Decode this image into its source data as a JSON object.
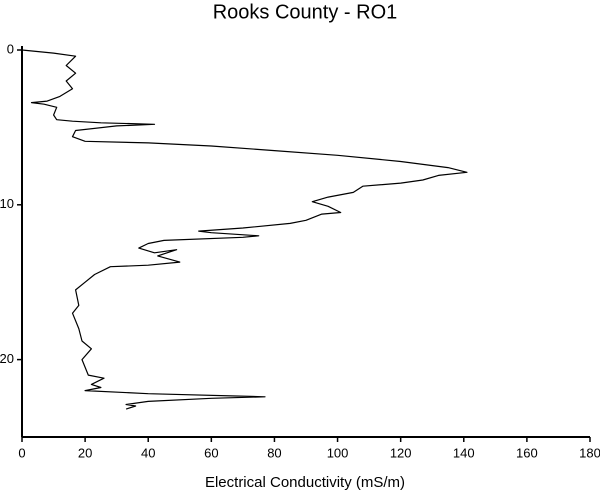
{
  "chart_data": {
    "type": "line",
    "title": "Rooks County - RO1",
    "x_label": "Electrical Conductivity (mS/m)",
    "xlim": [
      0,
      180
    ],
    "xticks": [
      0,
      20,
      40,
      60,
      80,
      100,
      120,
      140,
      160,
      180
    ],
    "ylim": [
      0,
      25
    ],
    "yticks": [
      0,
      10,
      20
    ],
    "y_inverted": true,
    "color": "#000000",
    "x": [
      0,
      10,
      17,
      14,
      17,
      14,
      16,
      12,
      8,
      3,
      7,
      11,
      10,
      11,
      16,
      25,
      42,
      30,
      17,
      16,
      20,
      40,
      60,
      80,
      100,
      120,
      135,
      141,
      132,
      127,
      120,
      108,
      105,
      97,
      92,
      97,
      101,
      95,
      90,
      85,
      70,
      56,
      60,
      75,
      70,
      45,
      40,
      37,
      42,
      49,
      43,
      50,
      40,
      28,
      23,
      20,
      17,
      18,
      16,
      18,
      19,
      22,
      19,
      21,
      26,
      22,
      25,
      20,
      40,
      77,
      60,
      40,
      33,
      36,
      33
    ],
    "values": [
      0,
      0.2,
      0.4,
      1.0,
      1.5,
      2.0,
      2.5,
      3.0,
      3.3,
      3.4,
      3.5,
      3.7,
      4.2,
      4.5,
      4.6,
      4.7,
      4.8,
      4.9,
      5.2,
      5.6,
      5.9,
      6.0,
      6.2,
      6.5,
      6.8,
      7.2,
      7.6,
      7.9,
      8.1,
      8.4,
      8.6,
      8.8,
      9.2,
      9.5,
      9.8,
      10.1,
      10.5,
      10.6,
      11.0,
      11.2,
      11.5,
      11.7,
      11.8,
      12.0,
      12.1,
      12.3,
      12.5,
      12.8,
      13.1,
      12.9,
      13.3,
      13.7,
      13.9,
      14.0,
      14.5,
      15.0,
      15.5,
      16.5,
      17.0,
      18.0,
      18.8,
      19.3,
      20.0,
      21.0,
      21.2,
      21.6,
      21.8,
      22.0,
      22.2,
      22.4,
      22.5,
      22.7,
      22.9,
      23.0,
      23.2
    ]
  }
}
